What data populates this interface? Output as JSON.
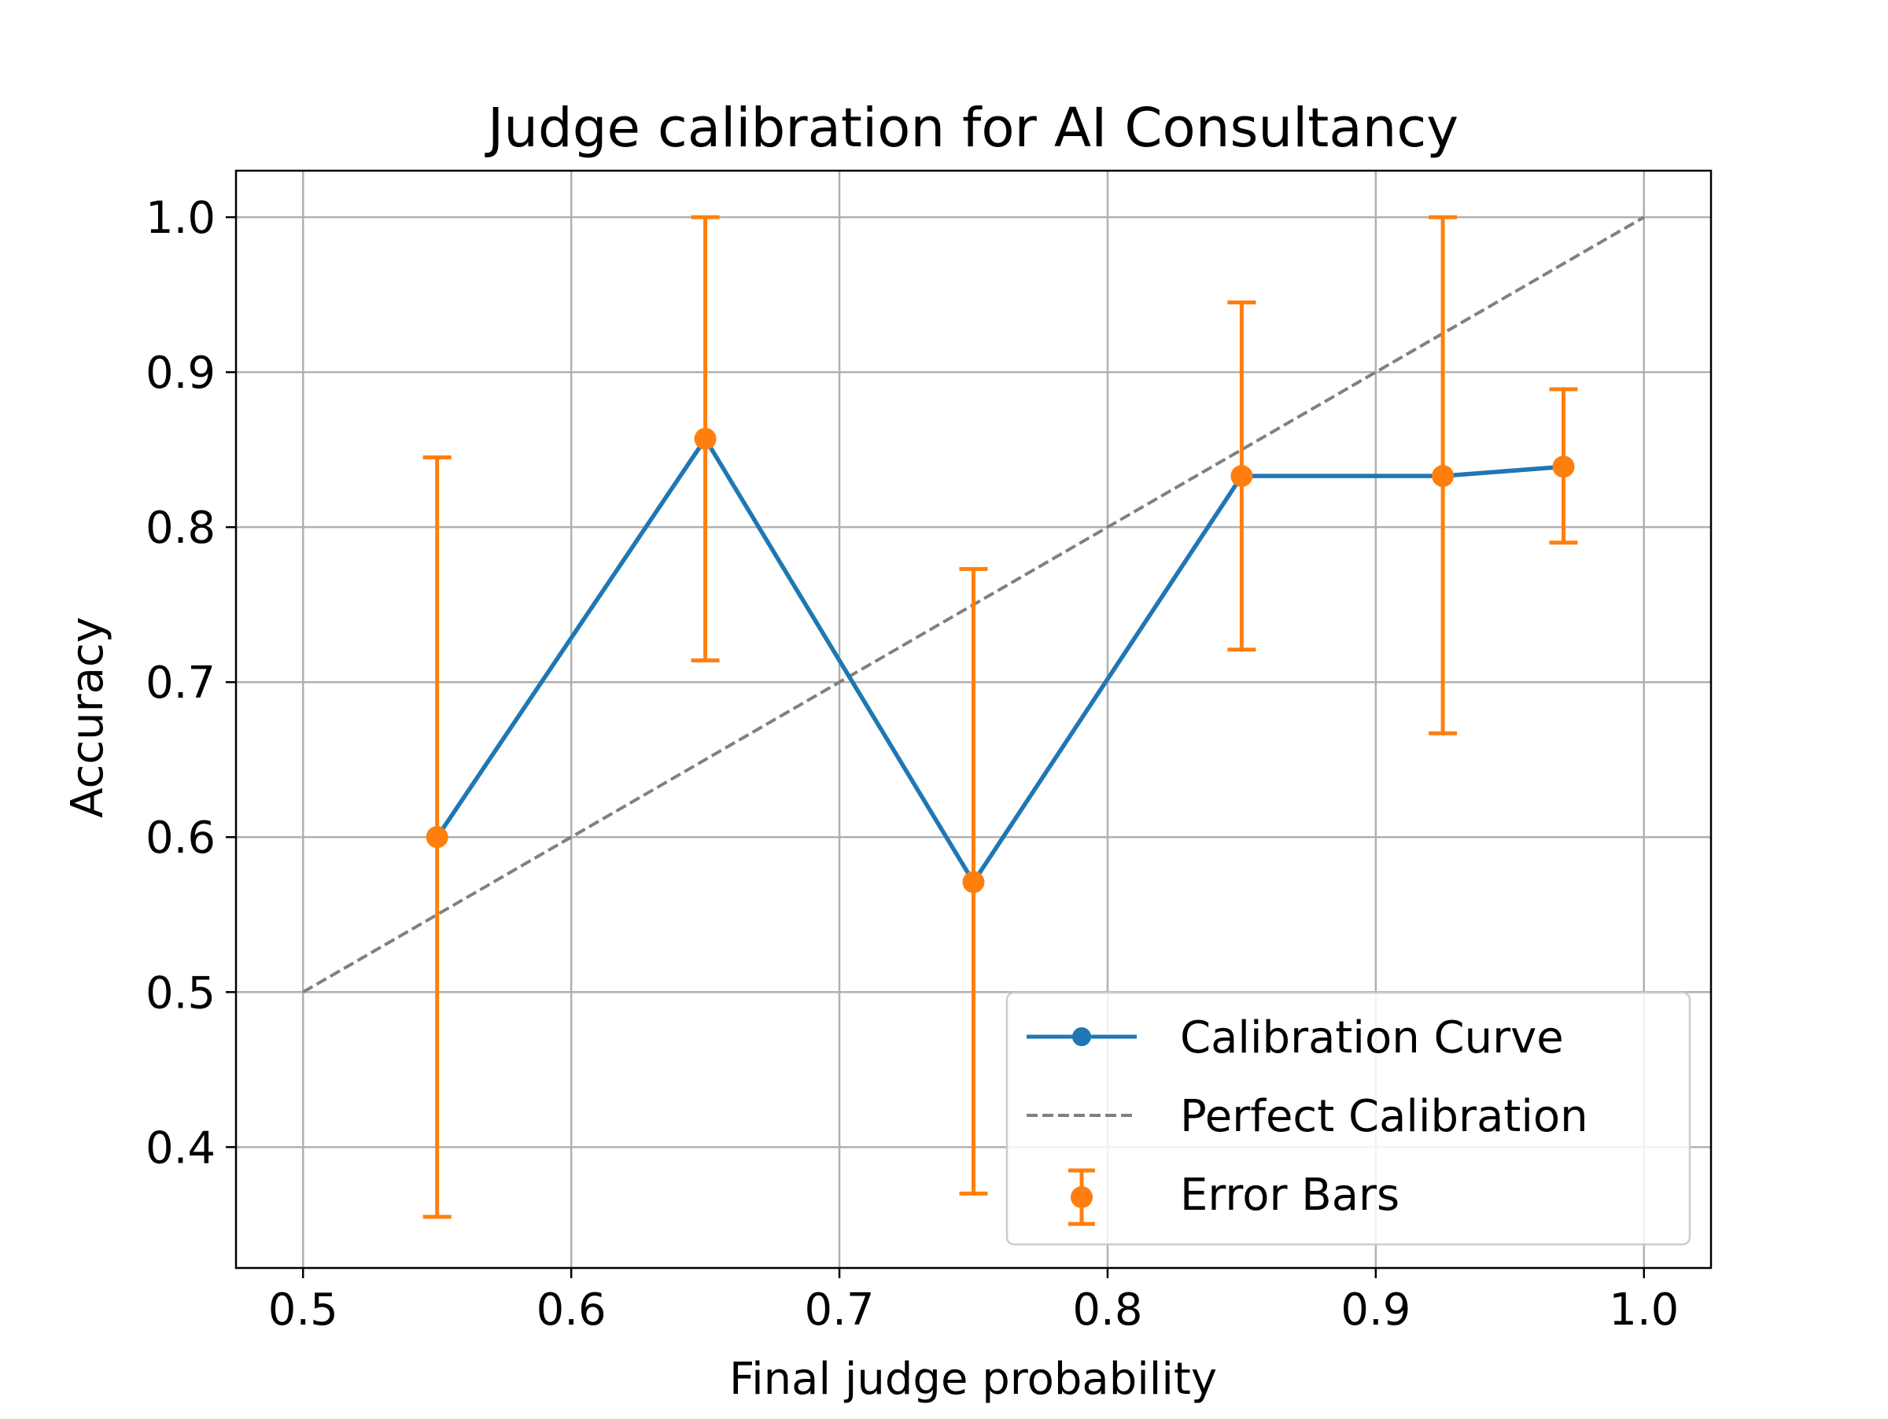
{
  "chart_data": {
    "type": "line",
    "title": "Judge calibration for AI Consultancy",
    "xlabel": "Final judge probability",
    "ylabel": "Accuracy",
    "xlim": [
      0.475,
      1.025
    ],
    "ylim": [
      0.322,
      1.03
    ],
    "xticks": [
      0.5,
      0.6,
      0.7,
      0.8,
      0.9,
      1.0
    ],
    "xtick_labels": [
      "0.5",
      "0.6",
      "0.7",
      "0.8",
      "0.9",
      "1.0"
    ],
    "yticks": [
      0.4,
      0.5,
      0.6,
      0.7,
      0.8,
      0.9,
      1.0
    ],
    "ytick_labels": [
      "0.4",
      "0.5",
      "0.6",
      "0.7",
      "0.8",
      "0.9",
      "1.0"
    ],
    "grid": true,
    "legend_position": "lower-right",
    "series": [
      {
        "name": "Calibration Curve",
        "kind": "line-marker",
        "color": "#1f77b4",
        "x": [
          0.55,
          0.65,
          0.75,
          0.85,
          0.925,
          0.97
        ],
        "y": [
          0.6,
          0.857,
          0.571,
          0.833,
          0.833,
          0.839
        ]
      },
      {
        "name": "Perfect Calibration",
        "kind": "dashed-line",
        "color": "#808080",
        "x": [
          0.5,
          1.0
        ],
        "y": [
          0.5,
          1.0
        ]
      },
      {
        "name": "Error Bars",
        "kind": "errorbar",
        "color": "#ff7f0e",
        "x": [
          0.55,
          0.65,
          0.75,
          0.85,
          0.925,
          0.97
        ],
        "y": [
          0.6,
          0.857,
          0.571,
          0.833,
          0.833,
          0.839
        ],
        "lower": [
          0.355,
          0.714,
          0.37,
          0.721,
          0.667,
          0.79
        ],
        "upper": [
          0.845,
          1.0,
          0.773,
          0.945,
          1.0,
          0.889
        ]
      }
    ]
  }
}
